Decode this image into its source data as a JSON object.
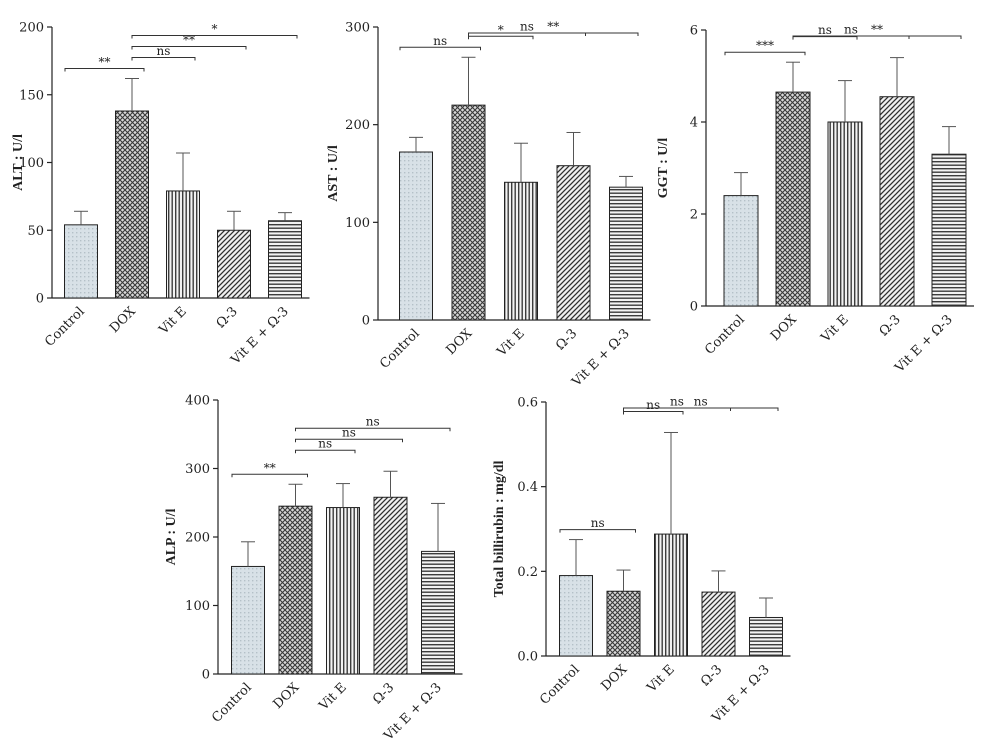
{
  "chart_data": [
    {
      "type": "bar",
      "ylabel": "ALT : U/l",
      "ylim": [
        0,
        200
      ],
      "yticks": [
        0,
        50,
        100,
        150,
        200
      ],
      "categories": [
        "Control",
        "DOX",
        "Vit E",
        "Ω-3",
        "Vit E + Ω-3"
      ],
      "values": [
        54,
        138,
        79,
        50,
        57
      ],
      "errors": [
        10,
        24,
        28,
        14,
        6
      ],
      "significance": [
        {
          "from": "Control",
          "to": "DOX",
          "label": "**"
        },
        {
          "from": "DOX",
          "to": "Vit E",
          "label": "ns"
        },
        {
          "from": "DOX",
          "to": "Ω-3",
          "label": "**"
        },
        {
          "from": "DOX",
          "to": "Vit E + Ω-3",
          "label": "*"
        }
      ]
    },
    {
      "type": "bar",
      "ylabel": "AST : U/l",
      "ylim": [
        0,
        300
      ],
      "yticks": [
        0,
        100,
        200,
        300
      ],
      "categories": [
        "Control",
        "DOX",
        "Vit E",
        "Ω-3",
        "Vit E + Ω-3"
      ],
      "values": [
        172,
        220,
        141,
        158,
        136
      ],
      "errors": [
        15,
        49,
        40,
        34,
        11
      ],
      "significance": [
        {
          "from": "Control",
          "to": "DOX",
          "label": "ns"
        },
        {
          "from": "DOX",
          "to": "Vit E",
          "label": "*"
        },
        {
          "from": "DOX",
          "to": "Ω-3",
          "label": "ns"
        },
        {
          "from": "DOX",
          "to": "Vit E + Ω-3",
          "label": "**"
        }
      ]
    },
    {
      "type": "bar",
      "ylabel": "GGT : U/l",
      "ylim": [
        0,
        6
      ],
      "yticks": [
        0,
        2,
        4,
        6
      ],
      "categories": [
        "Control",
        "DOX",
        "Vit E",
        "Ω-3",
        "Vit E + Ω-3"
      ],
      "values": [
        2.4,
        4.65,
        4.0,
        4.55,
        3.3
      ],
      "errors": [
        0.5,
        0.65,
        0.9,
        0.85,
        0.6
      ],
      "significance": [
        {
          "from": "Control",
          "to": "DOX",
          "label": "***"
        },
        {
          "from": "DOX",
          "to": "Vit E",
          "label": "ns"
        },
        {
          "from": "DOX",
          "to": "Ω-3",
          "label": "ns"
        },
        {
          "from": "DOX",
          "to": "Vit E + Ω-3",
          "label": "**"
        }
      ]
    },
    {
      "type": "bar",
      "ylabel": "ALP : U/l",
      "ylim": [
        0,
        400
      ],
      "yticks": [
        0,
        100,
        200,
        300,
        400
      ],
      "categories": [
        "Control",
        "DOX",
        "Vit E",
        "Ω-3",
        "Vit E + Ω-3"
      ],
      "values": [
        157,
        245,
        243,
        258,
        179
      ],
      "errors": [
        36,
        32,
        35,
        38,
        70
      ],
      "significance": [
        {
          "from": "Control",
          "to": "DOX",
          "label": "**"
        },
        {
          "from": "DOX",
          "to": "Vit E",
          "label": "ns"
        },
        {
          "from": "DOX",
          "to": "Ω-3",
          "label": "ns"
        },
        {
          "from": "DOX",
          "to": "Vit E + Ω-3",
          "label": "ns"
        }
      ]
    },
    {
      "type": "bar",
      "ylabel": "Total billirubin : mg/dl",
      "ylim": [
        0,
        0.6
      ],
      "yticks": [
        "0.0",
        "0.2",
        "0.4",
        "0.6"
      ],
      "categories": [
        "Control",
        "DOX",
        "Vit E",
        "Ω-3",
        "Vit E + Ω-3"
      ],
      "values": [
        0.19,
        0.153,
        0.288,
        0.151,
        0.091
      ],
      "errors": [
        0.085,
        0.05,
        0.24,
        0.05,
        0.046
      ],
      "significance": [
        {
          "from": "Control",
          "to": "DOX",
          "label": "ns"
        },
        {
          "from": "DOX",
          "to": "Vit E",
          "label": "ns"
        },
        {
          "from": "DOX",
          "to": "Ω-3",
          "label": "ns"
        },
        {
          "from": "DOX",
          "to": "Vit E + Ω-3",
          "label": "ns"
        }
      ]
    }
  ],
  "bar_fills": [
    "#d2dce3",
    "#6e6e6e",
    "#7a7a7a",
    "#6a6a6a",
    "#8a8a8a"
  ],
  "bar_patterns": [
    "dots",
    "crosshatch",
    "vertical-lines",
    "diagonal-lines",
    "horizontal-lines"
  ]
}
